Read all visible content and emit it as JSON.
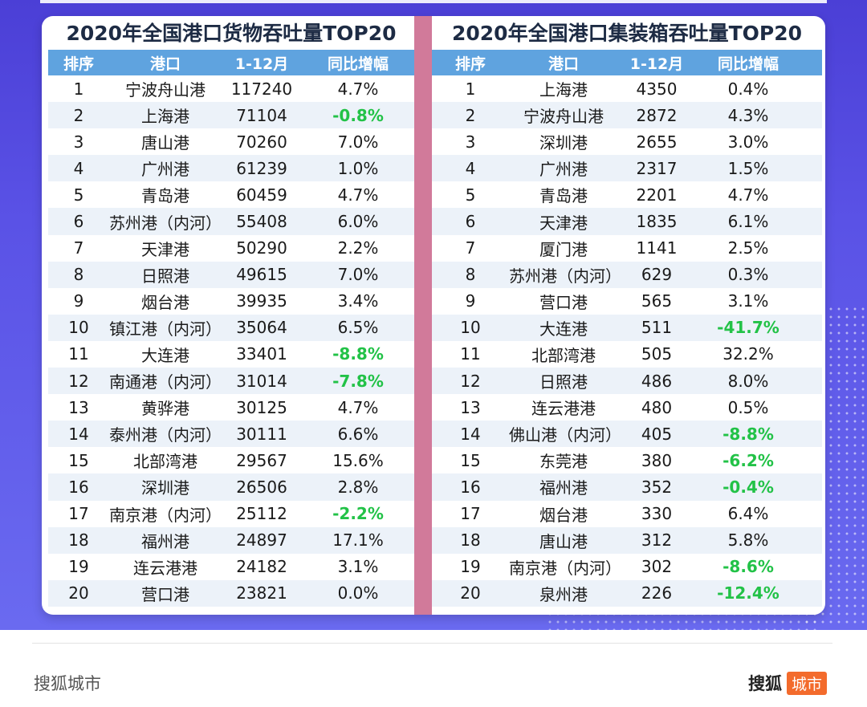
{
  "left": {
    "title": "2020年全国港口货物吞吐量TOP20",
    "headers": [
      "排序",
      "港口",
      "1-12月",
      "同比增幅"
    ],
    "rows": [
      {
        "rank": "1",
        "port": "宁波舟山港",
        "value": "117240",
        "growth": "4.7%",
        "negative": false
      },
      {
        "rank": "2",
        "port": "上海港",
        "value": "71104",
        "growth": "-0.8%",
        "negative": true
      },
      {
        "rank": "3",
        "port": "唐山港",
        "value": "70260",
        "growth": "7.0%",
        "negative": false
      },
      {
        "rank": "4",
        "port": "广州港",
        "value": "61239",
        "growth": "1.0%",
        "negative": false
      },
      {
        "rank": "5",
        "port": "青岛港",
        "value": "60459",
        "growth": "4.7%",
        "negative": false
      },
      {
        "rank": "6",
        "port": "苏州港（内河）",
        "value": "55408",
        "growth": "6.0%",
        "negative": false
      },
      {
        "rank": "7",
        "port": "天津港",
        "value": "50290",
        "growth": "2.2%",
        "negative": false
      },
      {
        "rank": "8",
        "port": "日照港",
        "value": "49615",
        "growth": "7.0%",
        "negative": false
      },
      {
        "rank": "9",
        "port": "烟台港",
        "value": "39935",
        "growth": "3.4%",
        "negative": false
      },
      {
        "rank": "10",
        "port": "镇江港（内河）",
        "value": "35064",
        "growth": "6.5%",
        "negative": false
      },
      {
        "rank": "11",
        "port": "大连港",
        "value": "33401",
        "growth": "-8.8%",
        "negative": true
      },
      {
        "rank": "12",
        "port": "南通港（内河）",
        "value": "31014",
        "growth": "-7.8%",
        "negative": true
      },
      {
        "rank": "13",
        "port": "黄骅港",
        "value": "30125",
        "growth": "4.7%",
        "negative": false
      },
      {
        "rank": "14",
        "port": "泰州港（内河）",
        "value": "30111",
        "growth": "6.6%",
        "negative": false
      },
      {
        "rank": "15",
        "port": "北部湾港",
        "value": "29567",
        "growth": "15.6%",
        "negative": false
      },
      {
        "rank": "16",
        "port": "深圳港",
        "value": "26506",
        "growth": "2.8%",
        "negative": false
      },
      {
        "rank": "17",
        "port": "南京港（内河）",
        "value": "25112",
        "growth": "-2.2%",
        "negative": true
      },
      {
        "rank": "18",
        "port": "福州港",
        "value": "24897",
        "growth": "17.1%",
        "negative": false
      },
      {
        "rank": "19",
        "port": "连云港港",
        "value": "24182",
        "growth": "3.1%",
        "negative": false
      },
      {
        "rank": "20",
        "port": "营口港",
        "value": "23821",
        "growth": "0.0%",
        "negative": false
      }
    ]
  },
  "right": {
    "title": "2020年全国港口集装箱吞吐量TOP20",
    "headers": [
      "排序",
      "港口",
      "1-12月",
      "同比增幅"
    ],
    "rows": [
      {
        "rank": "1",
        "port": "上海港",
        "value": "4350",
        "growth": "0.4%",
        "negative": false
      },
      {
        "rank": "2",
        "port": "宁波舟山港",
        "value": "2872",
        "growth": "4.3%",
        "negative": false
      },
      {
        "rank": "3",
        "port": "深圳港",
        "value": "2655",
        "growth": "3.0%",
        "negative": false
      },
      {
        "rank": "4",
        "port": "广州港",
        "value": "2317",
        "growth": "1.5%",
        "negative": false
      },
      {
        "rank": "5",
        "port": "青岛港",
        "value": "2201",
        "growth": "4.7%",
        "negative": false
      },
      {
        "rank": "6",
        "port": "天津港",
        "value": "1835",
        "growth": "6.1%",
        "negative": false
      },
      {
        "rank": "7",
        "port": "厦门港",
        "value": "1141",
        "growth": "2.5%",
        "negative": false
      },
      {
        "rank": "8",
        "port": "苏州港（内河）",
        "value": "629",
        "growth": "0.3%",
        "negative": false
      },
      {
        "rank": "9",
        "port": "营口港",
        "value": "565",
        "growth": "3.1%",
        "negative": false
      },
      {
        "rank": "10",
        "port": "大连港",
        "value": "511",
        "growth": "-41.7%",
        "negative": true
      },
      {
        "rank": "11",
        "port": "北部湾港",
        "value": "505",
        "growth": "32.2%",
        "negative": false
      },
      {
        "rank": "12",
        "port": "日照港",
        "value": "486",
        "growth": "8.0%",
        "negative": false
      },
      {
        "rank": "13",
        "port": "连云港港",
        "value": "480",
        "growth": "0.5%",
        "negative": false
      },
      {
        "rank": "14",
        "port": "佛山港（内河）",
        "value": "405",
        "growth": "-8.8%",
        "negative": true
      },
      {
        "rank": "15",
        "port": "东莞港",
        "value": "380",
        "growth": "-6.2%",
        "negative": true
      },
      {
        "rank": "16",
        "port": "福州港",
        "value": "352",
        "growth": "-0.4%",
        "negative": true
      },
      {
        "rank": "17",
        "port": "烟台港",
        "value": "330",
        "growth": "6.4%",
        "negative": false
      },
      {
        "rank": "18",
        "port": "唐山港",
        "value": "312",
        "growth": "5.8%",
        "negative": false
      },
      {
        "rank": "19",
        "port": "南京港（内河）",
        "value": "302",
        "growth": "-8.6%",
        "negative": true
      },
      {
        "rank": "20",
        "port": "泉州港",
        "value": "226",
        "growth": "-12.4%",
        "negative": true
      }
    ]
  },
  "footer": {
    "source": "搜狐城市",
    "logo_main": "搜狐",
    "logo_badge": "城市"
  },
  "colors": {
    "negative": "#22c247",
    "header_bg": "#5fa3df",
    "divider": "#d17a9a",
    "banner": "#5a52e6",
    "badge": "#f36b2c"
  }
}
